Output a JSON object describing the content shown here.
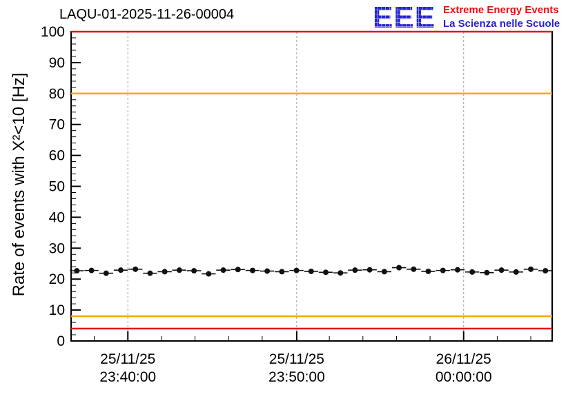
{
  "header": {
    "title": "LAQU-01-2025-11-26-00004",
    "logo": {
      "acronym": "EEE",
      "line1": "Extreme Energy Events",
      "line2": "La Scienza nelle Scuole",
      "acronym_color": "#2323cf",
      "line1_color": "#e8100c",
      "line2_color": "#2323cf"
    }
  },
  "chart_data": {
    "type": "scatter",
    "title": "LAQU-01-2025-11-26-00004",
    "xlabel": "",
    "ylabel": "Rate of events with X²<10 [Hz]",
    "ylim": [
      0,
      100
    ],
    "ytick_step": 10,
    "ytick_minor_step": 2,
    "ytick_labels": [
      "0",
      "10",
      "20",
      "30",
      "40",
      "50",
      "60",
      "70",
      "80",
      "90",
      "100"
    ],
    "xtick_labels": [
      {
        "date": "25/11/25",
        "time": "23:40:00"
      },
      {
        "date": "25/11/25",
        "time": "23:50:00"
      },
      {
        "date": "26/11/25",
        "time": "00:00:00"
      }
    ],
    "xtick_positions": [
      0.118,
      0.469,
      0.816
    ],
    "grid": "vertical-dashed",
    "reference_lines": [
      {
        "name": "upper-alarm-line",
        "value": 100,
        "color": "#e8100c"
      },
      {
        "name": "upper-warning-line",
        "value": 80,
        "color": "#ffa500"
      },
      {
        "name": "lower-warning-line",
        "value": 8,
        "color": "#ffa500"
      },
      {
        "name": "lower-alarm-line",
        "value": 4,
        "color": "#e8100c"
      }
    ],
    "series": [
      {
        "name": "event-rate",
        "marker": "circle",
        "color": "#111111",
        "yerr": 0.8,
        "values": [
          22.7,
          22.8,
          21.9,
          22.9,
          23.2,
          21.9,
          22.4,
          22.9,
          22.7,
          21.7,
          22.9,
          23.1,
          22.8,
          22.6,
          22.4,
          22.8,
          22.5,
          22.2,
          22.0,
          22.9,
          23.0,
          22.4,
          23.7,
          23.2,
          22.5,
          22.8,
          23.0,
          22.3,
          22.1,
          22.9,
          22.3,
          23.2,
          22.7
        ]
      }
    ]
  }
}
